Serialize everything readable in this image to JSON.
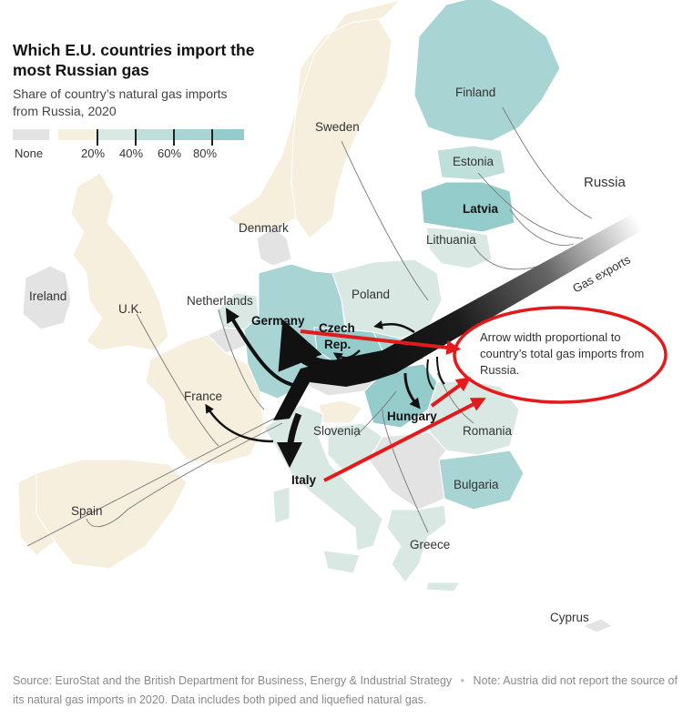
{
  "title": "Which E.U. countries import the most Russian gas",
  "subtitle": "Share of country’s natural gas imports from Russia, 2020",
  "legend": {
    "none_label": "None",
    "tick_labels": [
      "20%",
      "40%",
      "60%",
      "80%"
    ],
    "none_color": "#e3e3e3",
    "colors": [
      "#f6efdd",
      "#d9e8e2",
      "#bfdfdb",
      "#a8d5d3",
      "#93cccb"
    ]
  },
  "countries": {
    "finland": {
      "label": "Finland",
      "share_pct": 85,
      "bold": false
    },
    "sweden": {
      "label": "Sweden",
      "share_pct": 5,
      "bold": false
    },
    "estonia": {
      "label": "Estonia",
      "share_pct": 60,
      "bold": false
    },
    "latvia": {
      "label": "Latvia",
      "share_pct": 100,
      "bold": true
    },
    "lithuania": {
      "label": "Lithuania",
      "share_pct": 45,
      "bold": false
    },
    "russia": {
      "label": "Russia",
      "bold": false
    },
    "denmark": {
      "label": "Denmark",
      "share_pct": 0,
      "bold": false
    },
    "ireland": {
      "label": "Ireland",
      "share_pct": 0,
      "bold": false
    },
    "uk": {
      "label": "U.K.",
      "share_pct": 5,
      "bold": false
    },
    "netherlands": {
      "label": "Netherlands",
      "share_pct": 25,
      "bold": false
    },
    "germany": {
      "label": "Germany",
      "share_pct": 65,
      "bold": true
    },
    "poland": {
      "label": "Poland",
      "share_pct": 55,
      "bold": false
    },
    "czech": {
      "label_line1": "Czech",
      "label_line2": "Rep.",
      "share_pct": 100,
      "bold": true
    },
    "france": {
      "label": "France",
      "share_pct": 15,
      "bold": false
    },
    "slovenia": {
      "label": "Slovenia",
      "share_pct": 10,
      "bold": false
    },
    "hungary": {
      "label": "Hungary",
      "share_pct": 95,
      "bold": true
    },
    "romania": {
      "label": "Romania",
      "share_pct": 25,
      "bold": false
    },
    "bulgaria": {
      "label": "Bulgaria",
      "share_pct": 75,
      "bold": false
    },
    "italy": {
      "label": "Italy",
      "share_pct": 40,
      "bold": true
    },
    "spain": {
      "label": "Spain",
      "share_pct": 10,
      "bold": false
    },
    "greece": {
      "label": "Greece",
      "share_pct": 40,
      "bold": false
    },
    "cyprus": {
      "label": "Cyprus",
      "bold": false
    }
  },
  "gas_exports_label": "Gas exports",
  "annotation": "Arrow width proportional to country’s total gas imports from Russia.",
  "annotation_color": "#e3191b",
  "source": "Source: EuroStat and the British Department for Business, Energy & Industrial Strategy",
  "separator": "•",
  "note": "Note: Austria did not report the source of its natural gas imports in 2020. Data includes both piped and liquefied natural gas."
}
